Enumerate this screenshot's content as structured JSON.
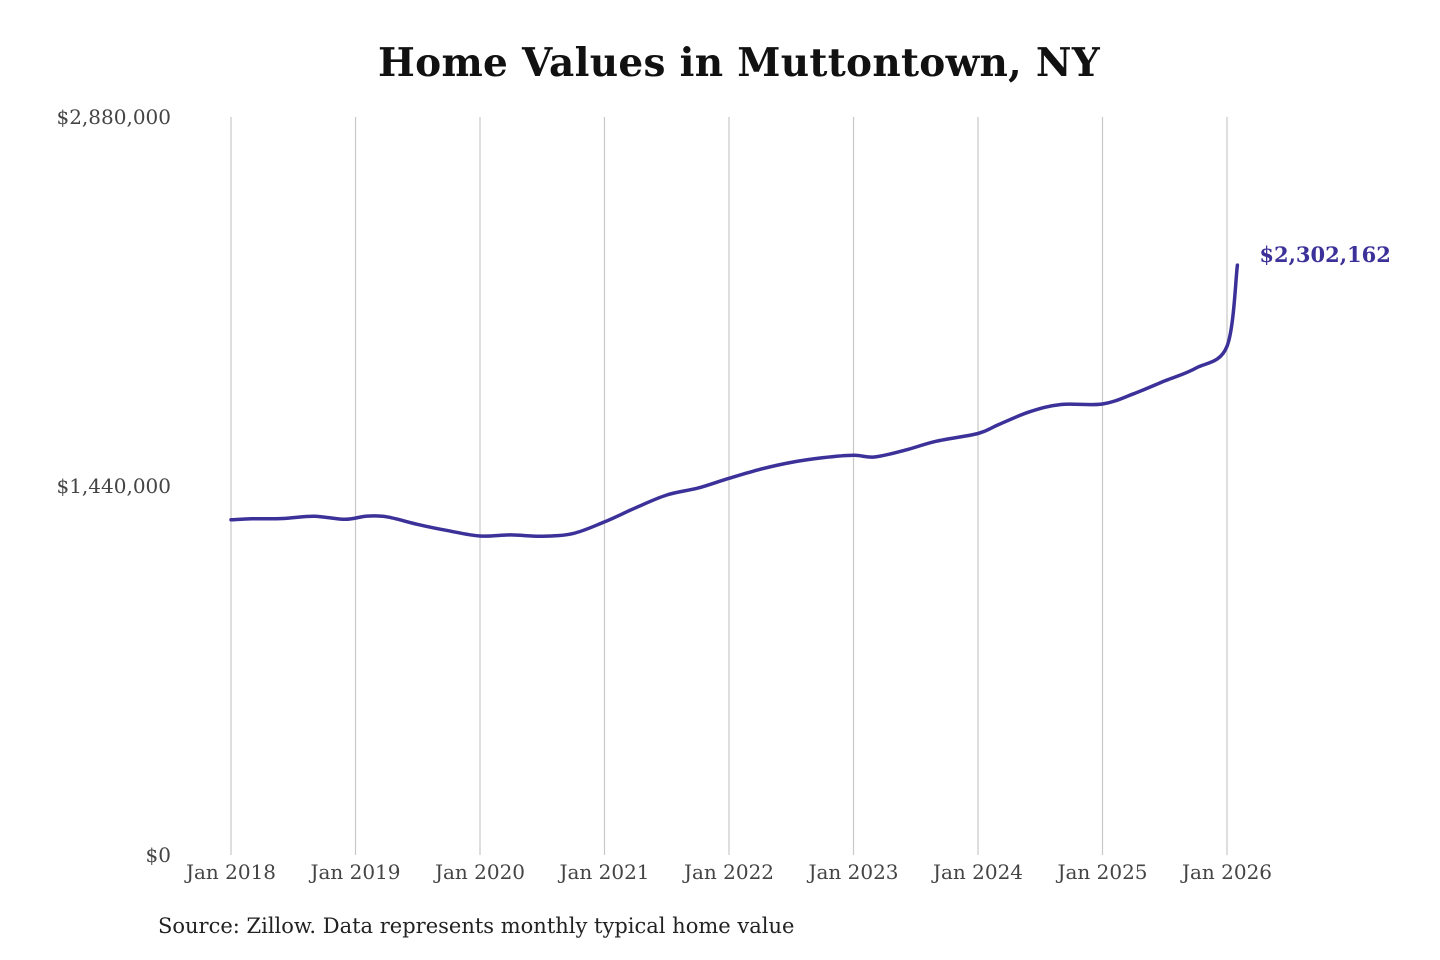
{
  "colors": {
    "line": "#3b3199",
    "grid": "#c8c8c8",
    "text": "#444444"
  },
  "footer": {
    "source": "Source: Zillow. Data represents monthly typical home value"
  },
  "chart_data": {
    "type": "line",
    "title": "Home Values in Muttontown, NY",
    "xlabel": "",
    "ylabel": "",
    "ylim": [
      0,
      2880000
    ],
    "y_ticks": [
      0,
      1440000,
      2880000
    ],
    "y_tick_labels": [
      "$0",
      "$1,440,000",
      "$2,880,000"
    ],
    "x_ticks": [
      "2018-01",
      "2019-01",
      "2020-01",
      "2021-01",
      "2022-01",
      "2023-01",
      "2024-01",
      "2025-01",
      "2026-01"
    ],
    "x_tick_labels": [
      "Jan 2018",
      "Jan 2019",
      "Jan 2020",
      "Jan 2021",
      "Jan 2022",
      "Jan 2023",
      "Jan 2024",
      "Jan 2025",
      "Jan 2026"
    ],
    "grid": "vertical lines at x ticks",
    "end_label": "$2,302,162",
    "series": [
      {
        "x": [
          "2018-01",
          "2018-03",
          "2018-06",
          "2018-09",
          "2018-12",
          "2019-02",
          "2019-04",
          "2019-07",
          "2019-10",
          "2020-01",
          "2020-04",
          "2020-07",
          "2020-10",
          "2021-01",
          "2021-04",
          "2021-07",
          "2021-10",
          "2022-01",
          "2022-04",
          "2022-07",
          "2022-10",
          "2023-01",
          "2023-03",
          "2023-06",
          "2023-09",
          "2024-01",
          "2024-03",
          "2024-06",
          "2024-09",
          "2025-01",
          "2025-04",
          "2025-07",
          "2025-10",
          "2026-01",
          "2026-02"
        ],
        "values": [
          1308000,
          1312000,
          1313000,
          1322000,
          1310000,
          1322000,
          1320000,
          1290000,
          1265000,
          1245000,
          1249000,
          1244000,
          1255000,
          1300000,
          1355000,
          1405000,
          1432000,
          1470000,
          1505000,
          1532000,
          1550000,
          1560000,
          1553000,
          1580000,
          1615000,
          1645000,
          1680000,
          1730000,
          1758000,
          1760000,
          1800000,
          1850000,
          1900000,
          1985000,
          2302162
        ]
      }
    ]
  }
}
